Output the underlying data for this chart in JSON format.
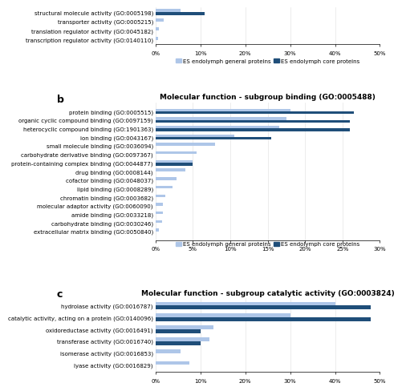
{
  "panel_a": {
    "categories": [
      "structural molecule activity (GO:0005198)",
      "transporter activity (GO:0005215)",
      "translation regulator activity (GO:0045182)",
      "transcription regulator activity (GO:0140110)"
    ],
    "general": [
      5.5,
      1.8,
      0.8,
      0.5
    ],
    "core": [
      11.0,
      0.0,
      0.0,
      0.0
    ],
    "xlim": [
      0,
      50
    ],
    "xticks": [
      0,
      10,
      20,
      30,
      40,
      50
    ],
    "xticklabels": [
      "0%",
      "10%",
      "20%",
      "30%",
      "40%",
      "50%"
    ]
  },
  "panel_b": {
    "title": "Molecular function - subgroup binding (GO:0005488)",
    "categories": [
      "protein binding (GO:0005515)",
      "organic cyclic compound binding (GO:0097159)",
      "heterocyclic compound binding (GO:1901363)",
      "ion binding (GO:0043167)",
      "small molecule binding (GO:0036094)",
      "carbohydrate derivative binding (GO:0097367)",
      "protein-containing complex binding (GO:0044877)",
      "drug binding (GO:0008144)",
      "cofactor binding (GO:0048037)",
      "lipid binding (GO:0008289)",
      "chromatin binding (GO:0003682)",
      "molecular adaptor activity (GO:0060090)",
      "amide binding (GO:0033218)",
      "carbohydrate binding (GO:0030246)",
      "extracellular matrix binding (GO:0050840)"
    ],
    "general": [
      18.0,
      17.5,
      16.5,
      10.5,
      8.0,
      5.5,
      5.0,
      4.0,
      2.8,
      2.3,
      1.3,
      1.0,
      1.0,
      0.9,
      0.4
    ],
    "core": [
      26.5,
      26.0,
      26.0,
      15.5,
      0.0,
      0.0,
      5.0,
      0.0,
      0.0,
      0.0,
      0.0,
      0.0,
      0.0,
      0.0,
      0.0
    ],
    "xlim": [
      0,
      30
    ],
    "xticks": [
      0,
      5,
      10,
      15,
      20,
      25,
      30
    ],
    "xticklabels": [
      "0%",
      "5%",
      "10%",
      "15%",
      "20%",
      "25%",
      "30%"
    ]
  },
  "panel_c": {
    "title": "Molecular function - subgroup catalytic activity (GO:0003824)",
    "categories": [
      "hydrolase activity (GO:0016787)",
      "catalytic activity, acting on a protein (GO:0140096)",
      "oxidoreductase activity (GO:0016491)",
      "transferase activity (GO:0016740)",
      "isomerase activity (GO:0016853)",
      "lyase activity (GO:0016829)"
    ],
    "general": [
      40.0,
      30.0,
      13.0,
      12.0,
      5.5,
      7.5
    ],
    "core": [
      48.0,
      48.0,
      10.0,
      10.0,
      0.0,
      0.0
    ],
    "xlim": [
      0,
      50
    ],
    "xticks": [
      0,
      10,
      20,
      30,
      40,
      50
    ],
    "xticklabels": [
      "0%",
      "10%",
      "20%",
      "30%",
      "40%",
      "50%"
    ]
  },
  "color_general": "#aec6e8",
  "color_core": "#1f4e79",
  "label_general": "ES endolymph general proteins",
  "label_core": "ES endolymph core proteins",
  "fontsize_title": 6.5,
  "fontsize_labels": 5.0,
  "fontsize_ticks": 5.0,
  "fontsize_legend": 5.0,
  "bar_height": 0.32
}
